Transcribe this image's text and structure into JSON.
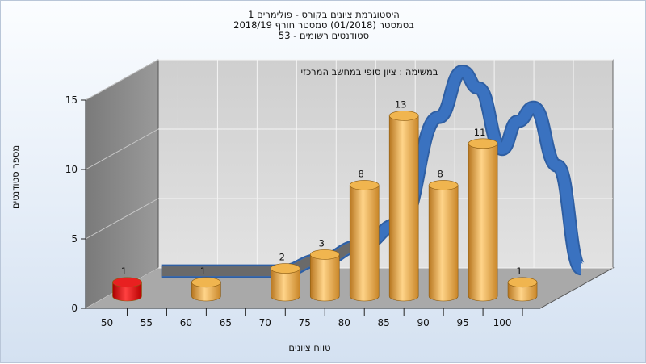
{
  "title_lines": [
    "היסטוגרמת ציונים בקורס - פולימרים 1",
    "בסמסטר  (01/2018)  סמסטר חורף 2018/19",
    "סטודנטים רשומים - 53"
  ],
  "colors": {
    "bar_gold": "#e0a545",
    "bar_red": "#e01818",
    "curve_blue": "#3a72c0",
    "floor_gray": "#a9a9a9",
    "wall_gray": "#8a8a8a"
  },
  "chart_data": {
    "type": "bar",
    "ylabel": "מספר סטודנטים",
    "xlabel": "טווח ציונים",
    "annotation": "במשימה : ציון סופי במחשב המרכזי",
    "ylim": [
      0,
      15
    ],
    "y_ticks": [
      0,
      5,
      10,
      15
    ],
    "x_tick_labels": [
      "50",
      "55",
      "60",
      "65",
      "70",
      "75",
      "80",
      "85",
      "90",
      "95",
      "100"
    ],
    "bars": [
      {
        "x": 50,
        "value": 1,
        "color": "red"
      },
      {
        "x": 60,
        "value": 1,
        "color": "gold"
      },
      {
        "x": 70,
        "value": 2,
        "color": "gold"
      },
      {
        "x": 75,
        "value": 3,
        "color": "gold"
      },
      {
        "x": 80,
        "value": 8,
        "color": "gold"
      },
      {
        "x": 85,
        "value": 13,
        "color": "gold"
      },
      {
        "x": 90,
        "value": 8,
        "color": "gold"
      },
      {
        "x": 95,
        "value": 11,
        "color": "gold"
      },
      {
        "x": 100,
        "value": 1,
        "color": "gold"
      }
    ],
    "curve": {
      "type": "ribbon",
      "points": [
        {
          "x": 50,
          "y": 0.4
        },
        {
          "x": 60,
          "y": 0.4
        },
        {
          "x": 65,
          "y": 0.4
        },
        {
          "x": 70,
          "y": 1.2
        },
        {
          "x": 75,
          "y": 2.2
        },
        {
          "x": 80,
          "y": 3.8
        },
        {
          "x": 85,
          "y": 11.5
        },
        {
          "x": 88,
          "y": 14.8
        },
        {
          "x": 90,
          "y": 13.6
        },
        {
          "x": 93,
          "y": 9.2
        },
        {
          "x": 95,
          "y": 11.2
        },
        {
          "x": 97,
          "y": 12.2
        },
        {
          "x": 100,
          "y": 8.0
        },
        {
          "x": 103,
          "y": 0.6
        }
      ]
    },
    "grid": true,
    "style": "3d"
  }
}
